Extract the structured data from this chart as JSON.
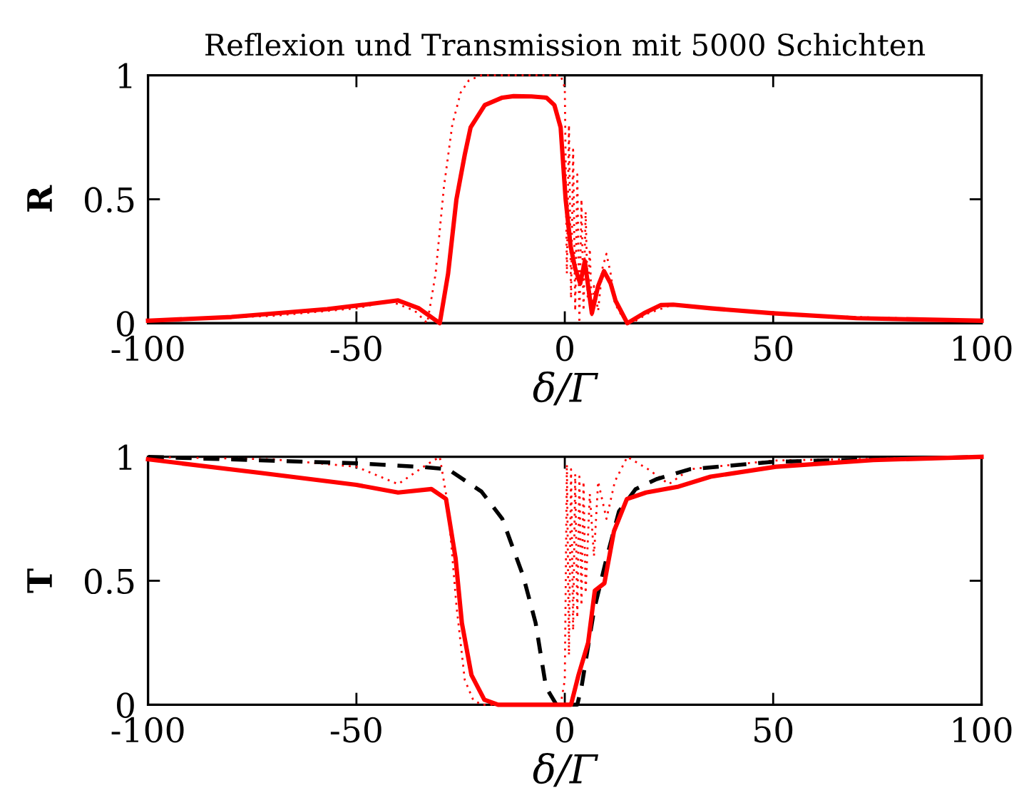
{
  "chart_data": [
    {
      "type": "line",
      "title": "Reflexion und Transmission mit 5000 Schichten",
      "xlabel": "δ/Γ",
      "ylabel": "R",
      "xlim": [
        -100,
        100
      ],
      "ylim": [
        0,
        1
      ],
      "xticks": [
        -100,
        -50,
        0,
        50,
        100
      ],
      "yticks": [
        0,
        0.5,
        1
      ],
      "grid": false,
      "legend": false,
      "series": [
        {
          "color": "#ff0000",
          "line_style": "dotted",
          "x": [
            -100,
            -70,
            -50,
            -42,
            -36,
            -33,
            -31,
            -29,
            -27,
            -25,
            -23,
            -20,
            -15,
            -10,
            -5,
            -1,
            0,
            0.5,
            1,
            1.5,
            2,
            2.5,
            3,
            3.5,
            4,
            4.5,
            5,
            5.5,
            6,
            6.5,
            7,
            8,
            9,
            10,
            11,
            12,
            14,
            16,
            20,
            26,
            40,
            60,
            100
          ],
          "values": [
            0.01,
            0.03,
            0.06,
            0.09,
            0.05,
            0.0,
            0.2,
            0.55,
            0.8,
            0.93,
            0.98,
            1.0,
            1.0,
            1.0,
            1.0,
            1.0,
            0.95,
            0.2,
            0.8,
            0.1,
            0.7,
            0.05,
            0.6,
            0.0,
            0.5,
            0.05,
            0.45,
            0.1,
            0.3,
            0.02,
            0.15,
            0.05,
            0.22,
            0.28,
            0.2,
            0.08,
            0.02,
            0.0,
            0.04,
            0.075,
            0.05,
            0.03,
            0.01
          ]
        },
        {
          "color": "#ff0000",
          "line_style": "solid",
          "x": [
            -100,
            -80,
            -57,
            -48,
            -40,
            -35,
            -30,
            -28,
            -26,
            -24,
            -22.6,
            -19.2,
            -15,
            -12.3,
            -8,
            -4.4,
            -2.5,
            -1,
            0.2,
            1.4,
            2.5,
            3.7,
            4.8,
            5.6,
            6.5,
            8,
            9.4,
            11,
            12.2,
            15,
            19,
            23,
            26,
            35,
            50,
            70,
            100
          ],
          "values": [
            0.01,
            0.025,
            0.057,
            0.075,
            0.092,
            0.06,
            0.0,
            0.2,
            0.5,
            0.68,
            0.79,
            0.88,
            0.91,
            0.916,
            0.915,
            0.91,
            0.88,
            0.79,
            0.5,
            0.31,
            0.22,
            0.16,
            0.25,
            0.15,
            0.04,
            0.15,
            0.21,
            0.16,
            0.09,
            0.0,
            0.04,
            0.073,
            0.075,
            0.06,
            0.04,
            0.02,
            0.01
          ]
        }
      ]
    },
    {
      "type": "line",
      "xlabel": "δ/Γ",
      "ylabel": "T",
      "xlim": [
        -100,
        100
      ],
      "ylim": [
        0,
        1
      ],
      "xticks": [
        -100,
        -50,
        0,
        50,
        100
      ],
      "yticks": [
        0,
        0.5,
        1
      ],
      "grid": false,
      "legend": false,
      "series": [
        {
          "color": "#ff0000",
          "line_style": "dotted",
          "x": [
            -100,
            -70,
            -50,
            -40,
            -33,
            -30,
            -28,
            -26,
            -24,
            -22,
            -20,
            -10,
            -1,
            0,
            0.5,
            1,
            1.5,
            2,
            2.5,
            3,
            3.5,
            4,
            4.5,
            5,
            6,
            7,
            8,
            10,
            12,
            15,
            20,
            25,
            30,
            50,
            100
          ],
          "values": [
            1.0,
            0.99,
            0.96,
            0.89,
            0.97,
            1.0,
            0.8,
            0.4,
            0.1,
            0.02,
            0.0,
            0.0,
            0.0,
            0.1,
            0.97,
            0.2,
            0.95,
            0.3,
            0.93,
            0.35,
            0.92,
            0.4,
            0.9,
            0.45,
            0.85,
            0.6,
            0.9,
            0.75,
            0.9,
            1.0,
            0.95,
            0.89,
            0.95,
            0.985,
            1.0
          ]
        },
        {
          "color": "#000000",
          "line_style": "dashed",
          "x": [
            -100,
            -50,
            -35,
            -28,
            -20,
            -15,
            -10,
            -7,
            -4.5,
            -2,
            3,
            4,
            7,
            10,
            13,
            17,
            22,
            30,
            50,
            100
          ],
          "values": [
            1.0,
            0.974,
            0.96,
            0.95,
            0.86,
            0.75,
            0.52,
            0.33,
            0.07,
            0.0,
            0.0,
            0.07,
            0.38,
            0.59,
            0.78,
            0.87,
            0.91,
            0.95,
            0.98,
            1.0
          ]
        },
        {
          "color": "#ff0000",
          "line_style": "solid",
          "x": [
            -100,
            -73,
            -50,
            -40,
            -32,
            -28.5,
            -26.2,
            -24.7,
            -22.4,
            -19.3,
            -16,
            1.5,
            3.3,
            5.6,
            7.2,
            9.5,
            11.8,
            14.9,
            19.5,
            27.3,
            35,
            50.6,
            74,
            100
          ],
          "values": [
            0.99,
            0.935,
            0.887,
            0.856,
            0.87,
            0.83,
            0.59,
            0.33,
            0.12,
            0.02,
            0.0,
            0.0,
            0.12,
            0.25,
            0.46,
            0.49,
            0.7,
            0.83,
            0.856,
            0.88,
            0.92,
            0.96,
            0.987,
            1.0
          ]
        }
      ]
    }
  ]
}
